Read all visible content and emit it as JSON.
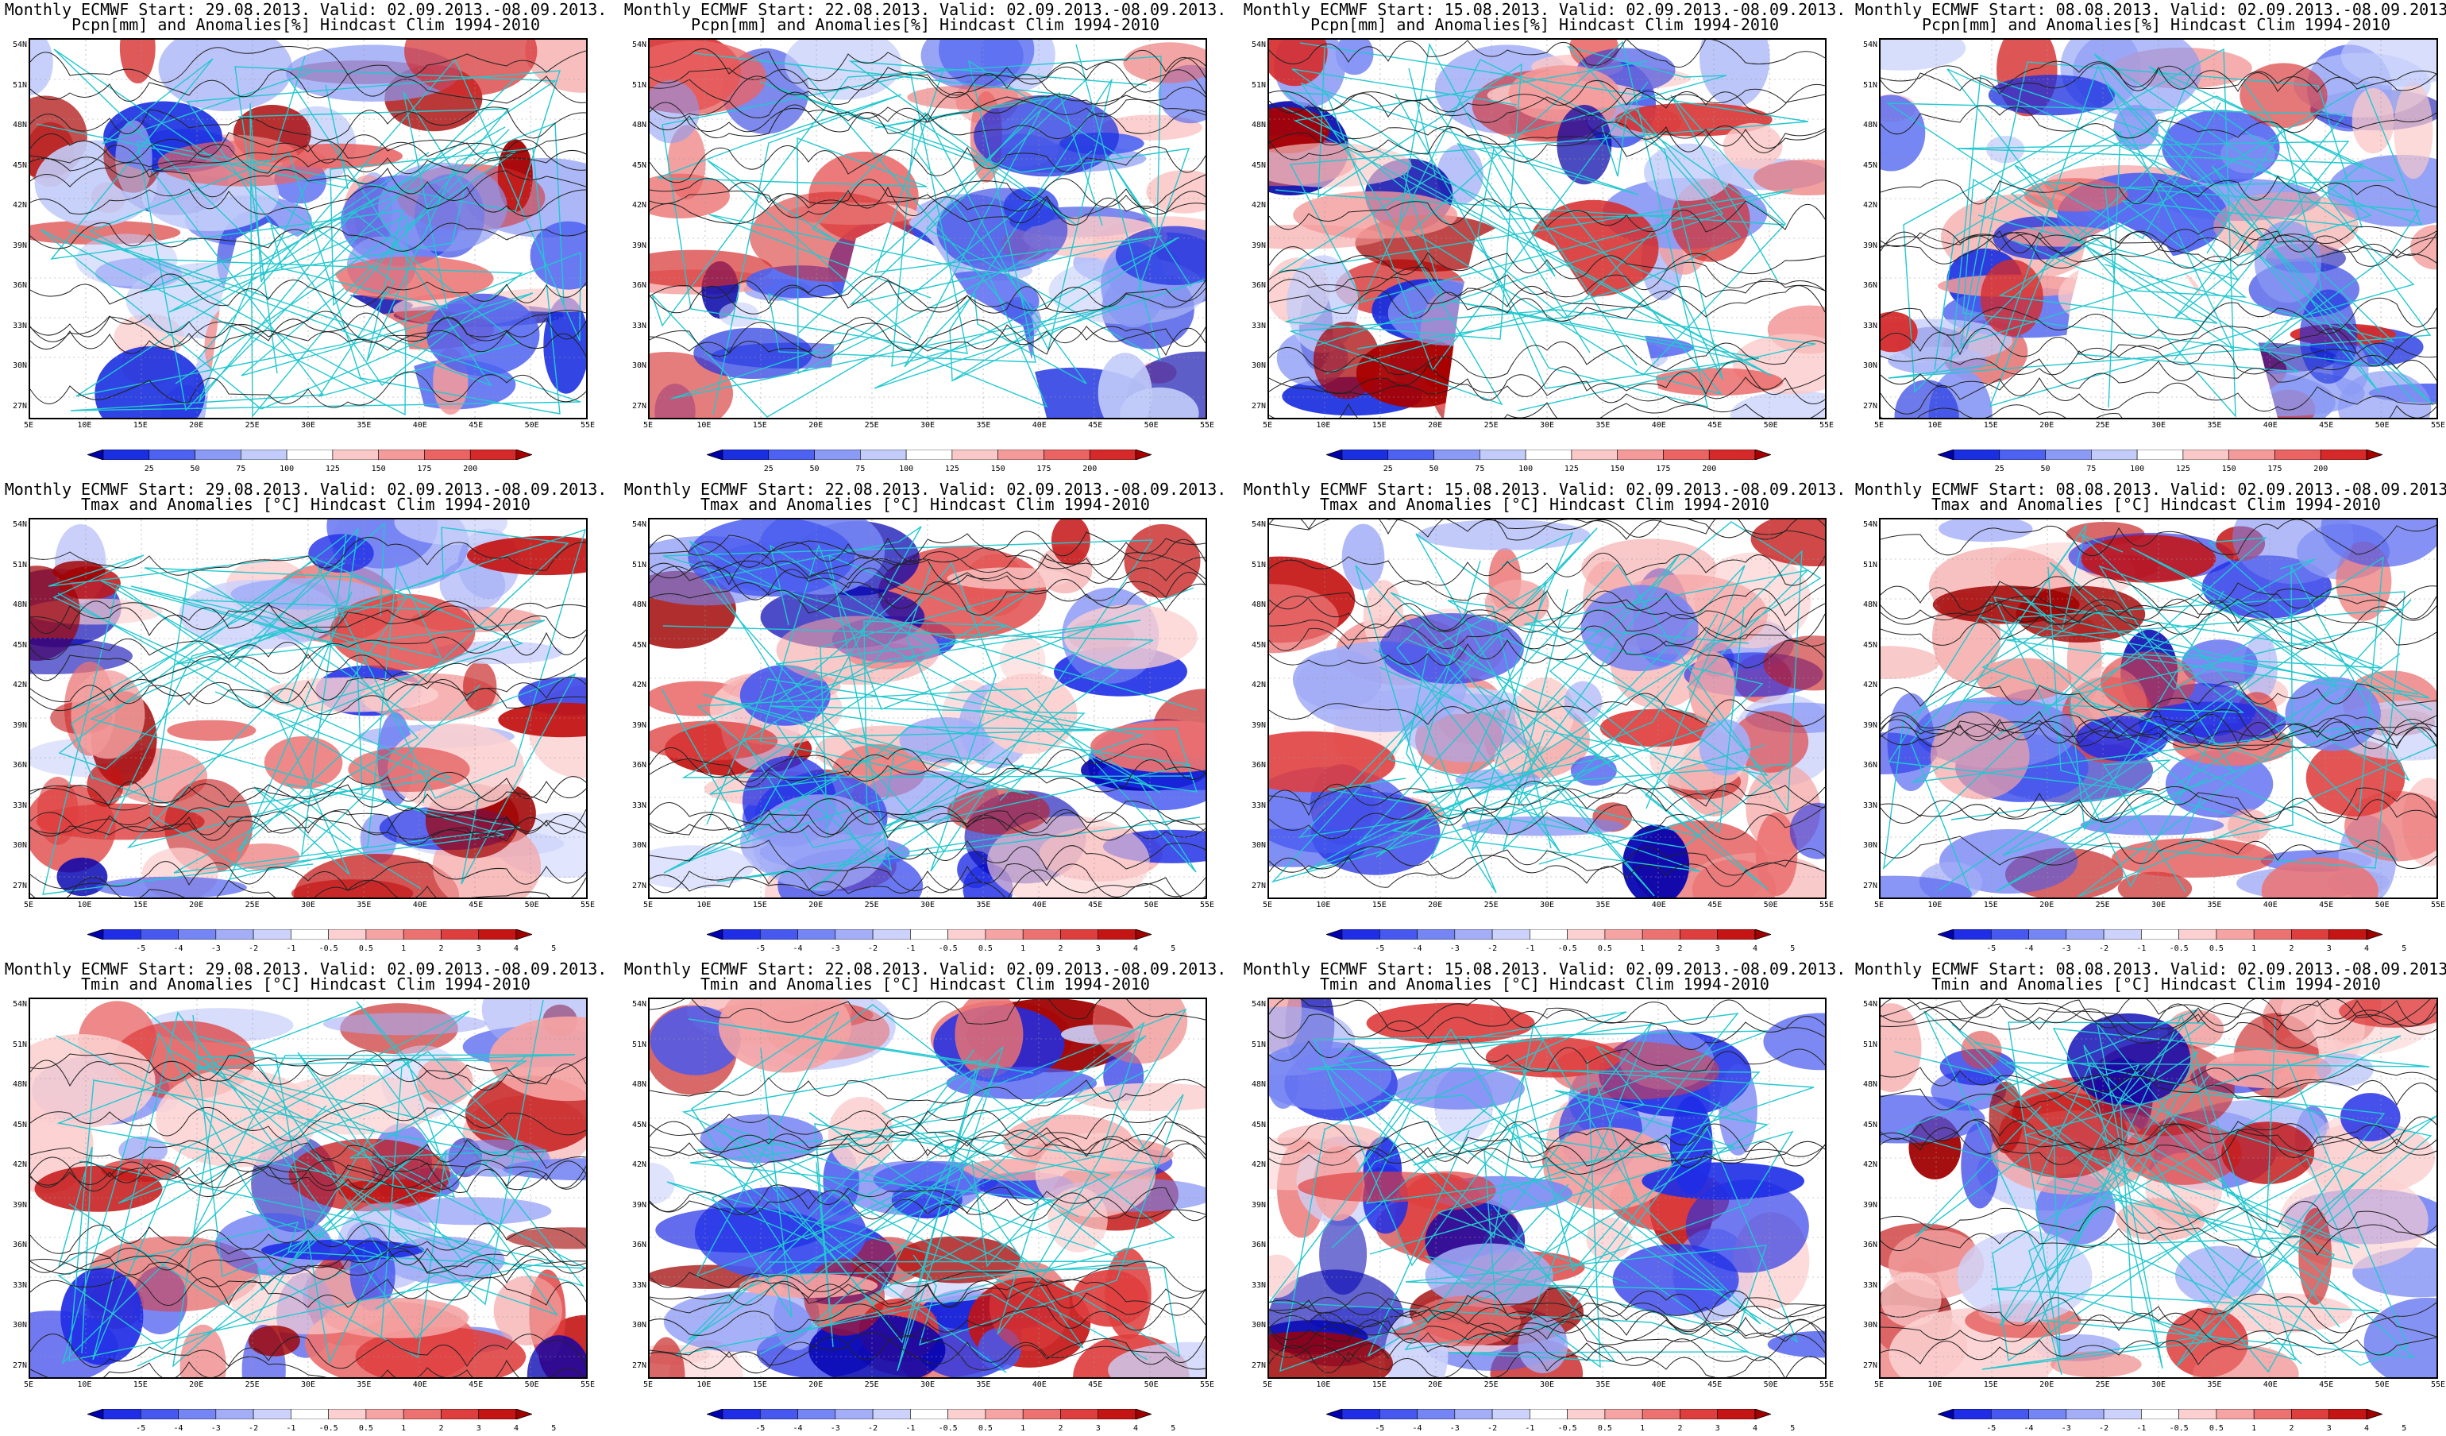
{
  "layout": {
    "columns": 4,
    "rows": 3
  },
  "grid": {
    "lat_labels": [
      "54N",
      "51N",
      "48N",
      "45N",
      "42N",
      "39N",
      "36N",
      "33N",
      "30N",
      "27N"
    ],
    "lon_labels": [
      "5E",
      "10E",
      "15E",
      "20E",
      "25E",
      "30E",
      "35E",
      "40E",
      "45E",
      "50E",
      "55E"
    ]
  },
  "colorbars": {
    "precip": {
      "labels": [
        "25",
        "50",
        "75",
        "100",
        "125",
        "150",
        "175",
        "200"
      ],
      "colors": [
        "#0000a8",
        "#1a2fe0",
        "#4d62f0",
        "#8a9af5",
        "#c2ccfa",
        "#ffffff",
        "#fbc8c8",
        "#f49a9a",
        "#ea6464",
        "#d62a2a",
        "#a80000"
      ]
    },
    "temp": {
      "labels": [
        "-5",
        "-4",
        "-3",
        "-2",
        "-1",
        "-0.5",
        "0.5",
        "1",
        "2",
        "3",
        "4",
        "5"
      ],
      "colors": [
        "#0000b0",
        "#1f2ee6",
        "#4658ef",
        "#7585f3",
        "#a3aef7",
        "#ccd2fb",
        "#ffffff",
        "#fcd0d0",
        "#f5a3a3",
        "#ec7272",
        "#df3e3e",
        "#c41414",
        "#a00000"
      ]
    }
  },
  "panels": [
    {
      "line1": "Monthly ECMWF Start: 29.08.2013. Valid: 02.09.2013.-08.09.2013.",
      "line2": "Pcpn[mm] and Anomalies[%] Hindcast Clim 1994-2010",
      "type": "precip",
      "seed": 11
    },
    {
      "line1": "Monthly ECMWF Start: 22.08.2013. Valid: 02.09.2013.-08.09.2013.",
      "line2": "Pcpn[mm] and Anomalies[%] Hindcast Clim 1994-2010",
      "type": "precip",
      "seed": 23
    },
    {
      "line1": "Monthly ECMWF Start: 15.08.2013. Valid: 02.09.2013.-08.09.2013.",
      "line2": "Pcpn[mm] and Anomalies[%] Hindcast Clim 1994-2010",
      "type": "precip",
      "seed": 37
    },
    {
      "line1": "Monthly ECMWF Start: 08.08.2013. Valid: 02.09.2013.-08.09.2013.",
      "line2": "Pcpn[mm] and Anomalies[%] Hindcast Clim 1994-2010",
      "type": "precip",
      "seed": 41
    },
    {
      "line1": "Monthly ECMWF Start: 29.08.2013. Valid: 02.09.2013.-08.09.2013.",
      "line2": "Tmax and Anomalies [°C] Hindcast Clim 1994-2010",
      "type": "temp",
      "seed": 53
    },
    {
      "line1": "Monthly ECMWF Start: 22.08.2013. Valid: 02.09.2013.-08.09.2013.",
      "line2": "Tmax and Anomalies [°C] Hindcast Clim 1994-2010",
      "type": "temp",
      "seed": 61
    },
    {
      "line1": "Monthly ECMWF Start: 15.08.2013. Valid: 02.09.2013.-08.09.2013.",
      "line2": "Tmax and Anomalies [°C] Hindcast Clim 1994-2010",
      "type": "temp",
      "seed": 73
    },
    {
      "line1": "Monthly ECMWF Start: 08.08.2013. Valid: 02.09.2013.-08.09.2013.",
      "line2": "Tmax and Anomalies [°C] Hindcast Clim 1994-2010",
      "type": "temp",
      "seed": 89
    },
    {
      "line1": "Monthly ECMWF Start: 29.08.2013. Valid: 02.09.2013.-08.09.2013.",
      "line2": "Tmin and Anomalies [°C] Hindcast Clim 1994-2010",
      "type": "temp",
      "seed": 97
    },
    {
      "line1": "Monthly ECMWF Start: 22.08.2013. Valid: 02.09.2013.-08.09.2013.",
      "line2": "Tmin and Anomalies [°C] Hindcast Clim 1994-2010",
      "type": "temp",
      "seed": 103
    },
    {
      "line1": "Monthly ECMWF Start: 15.08.2013. Valid: 02.09.2013.-08.09.2013.",
      "line2": "Tmin and Anomalies [°C] Hindcast Clim 1994-2010",
      "type": "temp",
      "seed": 113
    },
    {
      "line1": "Monthly ECMWF Start: 08.08.2013. Valid: 02.09.2013.-08.09.2013.",
      "line2": "Tmin and Anomalies [°C] Hindcast Clim 1994-2010",
      "type": "temp",
      "seed": 127
    }
  ]
}
